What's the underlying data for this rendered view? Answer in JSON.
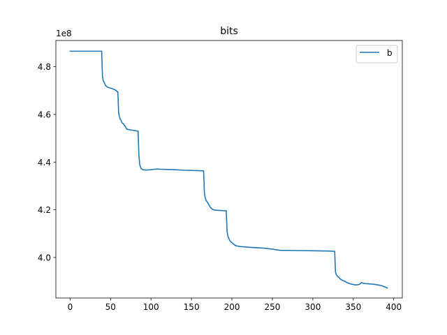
{
  "chart_data": {
    "type": "line",
    "title": "bits",
    "xlabel": "",
    "ylabel": "",
    "y_offset_text": "1e8",
    "xlim": [
      -17.6,
      410.6
    ],
    "ylim": [
      383000000,
      491000000
    ],
    "x_ticks": [
      0,
      50,
      100,
      150,
      200,
      250,
      300,
      350,
      400
    ],
    "x_tick_labels": [
      "0",
      "50",
      "100",
      "150",
      "200",
      "250",
      "300",
      "350",
      "400"
    ],
    "y_ticks": [
      400000000,
      420000000,
      440000000,
      460000000,
      480000000
    ],
    "y_tick_labels": [
      "4.0",
      "4.2",
      "4.4",
      "4.6",
      "4.8"
    ],
    "grid": false,
    "legend_position": "top-right",
    "series": [
      {
        "name": "b",
        "color": "#1f77b4",
        "x": [
          0,
          39,
          40,
          41,
          42,
          44,
          46,
          48,
          50,
          52,
          54,
          56,
          57,
          58,
          59,
          60,
          61,
          62,
          63,
          64,
          66,
          68,
          70,
          75,
          80,
          84,
          85,
          86,
          87,
          88,
          90,
          93,
          96,
          100,
          104,
          108,
          112,
          120,
          130,
          140,
          150,
          160,
          165,
          166,
          167,
          168,
          169,
          170,
          172,
          174,
          176,
          178,
          182,
          186,
          190,
          193,
          194,
          195,
          196,
          197,
          198,
          200,
          202,
          205,
          210,
          220,
          230,
          240,
          250,
          255,
          260,
          280,
          300,
          320,
          327,
          328,
          329,
          330,
          332,
          334,
          336,
          338,
          340,
          342,
          344,
          346,
          348,
          350,
          352,
          354,
          356,
          358,
          360,
          362,
          364,
          366,
          370,
          375,
          380,
          385,
          388,
          390,
          392
        ],
        "y": [
          486500000,
          486500000,
          476000000,
          474000000,
          473500000,
          472000000,
          471500000,
          471200000,
          471000000,
          470800000,
          470500000,
          470200000,
          470000000,
          469500000,
          469500000,
          460500000,
          459000000,
          458000000,
          457500000,
          456500000,
          456000000,
          455000000,
          453800000,
          453500000,
          453200000,
          453000000,
          443000000,
          439000000,
          438000000,
          437200000,
          436800000,
          436700000,
          436700000,
          436800000,
          437000000,
          437100000,
          437000000,
          436900000,
          436800000,
          436600000,
          436500000,
          436400000,
          436300000,
          427000000,
          425000000,
          424000000,
          423500000,
          423000000,
          421800000,
          420800000,
          420200000,
          419900000,
          419800000,
          419700000,
          419600000,
          419600000,
          411000000,
          409000000,
          408200000,
          407300000,
          406800000,
          406200000,
          405600000,
          404900000,
          404600000,
          404300000,
          404100000,
          403900000,
          403500000,
          403200000,
          403000000,
          402900000,
          402800000,
          402700000,
          402600000,
          394000000,
          392800000,
          392300000,
          391700000,
          391000000,
          390500000,
          390200000,
          389900000,
          389500000,
          389200000,
          389000000,
          388800000,
          388700000,
          388500000,
          388500000,
          388600000,
          388800000,
          389500000,
          389200000,
          389100000,
          389000000,
          388900000,
          388800000,
          388500000,
          388200000,
          387800000,
          387500000,
          387200000
        ]
      }
    ]
  }
}
